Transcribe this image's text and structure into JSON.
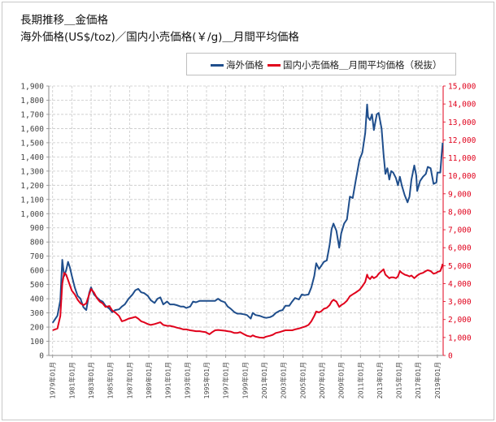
{
  "title_line1": "長期推移＿金価格",
  "title_line2": "海外価格(US$/toz)／国内小売価格(￥/g)＿月間平均価格",
  "colors": {
    "primary": "#1f4e8c",
    "secondary": "#e0001b",
    "grid": "#c8c8c8",
    "axis": "#888888"
  },
  "chart_data": {
    "type": "line",
    "title": "長期推移＿金価格",
    "subtitle": "海外価格(US$/toz)／国内小売価格(￥/g)＿月間平均価格",
    "legend_position": "top-right",
    "grid": true,
    "x_ticks": [
      "1979年01月",
      "1981年01月",
      "1983年01月",
      "1985年01月",
      "1987年01月",
      "1989年01月",
      "1991年01月",
      "1993年01月",
      "1995年01月",
      "1997年01月",
      "1999年01月",
      "2001年01月",
      "2003年01月",
      "2005年01月",
      "2007年01月",
      "2009年01月",
      "2011年01月",
      "2013年01月",
      "2015年01月",
      "2017年01月",
      "2019年01月"
    ],
    "y_left": {
      "min": 0,
      "max": 1900,
      "ticks": [
        "0",
        "100",
        "200",
        "300",
        "400",
        "500",
        "600",
        "700",
        "800",
        "900",
        "1,000",
        "1,100",
        "1,200",
        "1,300",
        "1,400",
        "1,500",
        "1,600",
        "1,700",
        "1,800",
        "1,900"
      ]
    },
    "y_right": {
      "min": 0,
      "max": 15000,
      "ticks": [
        "0",
        "1,000",
        "2,000",
        "3,000",
        "4,000",
        "5,000",
        "6,000",
        "7,000",
        "8,000",
        "9,000",
        "10,000",
        "11,000",
        "12,000",
        "13,000",
        "14,000",
        "15,000"
      ]
    },
    "series": [
      {
        "name": "海外価格",
        "axis": "left",
        "color": "#1f4e8c",
        "points": [
          [
            1979.0,
            230
          ],
          [
            1979.5,
            280
          ],
          [
            1979.8,
            390
          ],
          [
            1980.0,
            675
          ],
          [
            1980.2,
            560
          ],
          [
            1980.4,
            600
          ],
          [
            1980.6,
            660
          ],
          [
            1980.8,
            620
          ],
          [
            1981.0,
            560
          ],
          [
            1981.3,
            480
          ],
          [
            1981.6,
            420
          ],
          [
            1981.9,
            400
          ],
          [
            1982.2,
            340
          ],
          [
            1982.5,
            320
          ],
          [
            1982.8,
            440
          ],
          [
            1983.0,
            480
          ],
          [
            1983.3,
            430
          ],
          [
            1983.6,
            410
          ],
          [
            1983.9,
            390
          ],
          [
            1984.2,
            380
          ],
          [
            1984.5,
            350
          ],
          [
            1984.9,
            330
          ],
          [
            1985.2,
            305
          ],
          [
            1985.5,
            320
          ],
          [
            1985.9,
            325
          ],
          [
            1986.2,
            345
          ],
          [
            1986.5,
            360
          ],
          [
            1986.9,
            400
          ],
          [
            1987.3,
            430
          ],
          [
            1987.6,
            460
          ],
          [
            1987.9,
            470
          ],
          [
            1988.2,
            445
          ],
          [
            1988.5,
            440
          ],
          [
            1988.9,
            420
          ],
          [
            1989.2,
            390
          ],
          [
            1989.6,
            370
          ],
          [
            1989.9,
            400
          ],
          [
            1990.2,
            410
          ],
          [
            1990.5,
            360
          ],
          [
            1990.9,
            380
          ],
          [
            1991.2,
            360
          ],
          [
            1991.6,
            360
          ],
          [
            1991.9,
            355
          ],
          [
            1992.3,
            345
          ],
          [
            1992.6,
            345
          ],
          [
            1992.9,
            335
          ],
          [
            1993.3,
            345
          ],
          [
            1993.6,
            380
          ],
          [
            1993.9,
            375
          ],
          [
            1994.3,
            385
          ],
          [
            1994.6,
            385
          ],
          [
            1994.9,
            385
          ],
          [
            1995.3,
            385
          ],
          [
            1995.6,
            385
          ],
          [
            1995.9,
            385
          ],
          [
            1996.2,
            400
          ],
          [
            1996.5,
            385
          ],
          [
            1996.9,
            375
          ],
          [
            1997.2,
            345
          ],
          [
            1997.5,
            330
          ],
          [
            1997.9,
            305
          ],
          [
            1998.2,
            295
          ],
          [
            1998.5,
            295
          ],
          [
            1998.9,
            290
          ],
          [
            1999.2,
            285
          ],
          [
            1999.6,
            260
          ],
          [
            1999.8,
            300
          ],
          [
            2000.1,
            285
          ],
          [
            2000.5,
            280
          ],
          [
            2000.9,
            270
          ],
          [
            2001.2,
            265
          ],
          [
            2001.6,
            270
          ],
          [
            2001.9,
            280
          ],
          [
            2002.2,
            300
          ],
          [
            2002.6,
            315
          ],
          [
            2002.9,
            320
          ],
          [
            2003.2,
            350
          ],
          [
            2003.6,
            350
          ],
          [
            2003.9,
            380
          ],
          [
            2004.2,
            405
          ],
          [
            2004.6,
            395
          ],
          [
            2004.9,
            430
          ],
          [
            2005.2,
            425
          ],
          [
            2005.6,
            430
          ],
          [
            2005.9,
            480
          ],
          [
            2006.2,
            560
          ],
          [
            2006.4,
            650
          ],
          [
            2006.7,
            610
          ],
          [
            2006.9,
            630
          ],
          [
            2007.2,
            660
          ],
          [
            2007.5,
            670
          ],
          [
            2007.8,
            780
          ],
          [
            2008.0,
            890
          ],
          [
            2008.2,
            930
          ],
          [
            2008.5,
            880
          ],
          [
            2008.8,
            760
          ],
          [
            2009.0,
            860
          ],
          [
            2009.3,
            930
          ],
          [
            2009.6,
            960
          ],
          [
            2009.9,
            1120
          ],
          [
            2010.2,
            1110
          ],
          [
            2010.5,
            1230
          ],
          [
            2010.9,
            1380
          ],
          [
            2011.2,
            1430
          ],
          [
            2011.5,
            1570
          ],
          [
            2011.7,
            1770
          ],
          [
            2011.8,
            1680
          ],
          [
            2012.0,
            1660
          ],
          [
            2012.2,
            1700
          ],
          [
            2012.4,
            1590
          ],
          [
            2012.7,
            1700
          ],
          [
            2012.9,
            1710
          ],
          [
            2013.2,
            1600
          ],
          [
            2013.4,
            1420
          ],
          [
            2013.6,
            1280
          ],
          [
            2013.8,
            1320
          ],
          [
            2014.0,
            1240
          ],
          [
            2014.2,
            1300
          ],
          [
            2014.4,
            1290
          ],
          [
            2014.7,
            1250
          ],
          [
            2014.9,
            1200
          ],
          [
            2015.1,
            1260
          ],
          [
            2015.3,
            1200
          ],
          [
            2015.6,
            1130
          ],
          [
            2015.9,
            1080
          ],
          [
            2016.1,
            1120
          ],
          [
            2016.3,
            1240
          ],
          [
            2016.6,
            1340
          ],
          [
            2016.8,
            1270
          ],
          [
            2016.9,
            1160
          ],
          [
            2017.2,
            1230
          ],
          [
            2017.5,
            1260
          ],
          [
            2017.8,
            1280
          ],
          [
            2018.0,
            1330
          ],
          [
            2018.3,
            1320
          ],
          [
            2018.6,
            1210
          ],
          [
            2018.9,
            1220
          ],
          [
            2019.0,
            1290
          ],
          [
            2019.3,
            1290
          ],
          [
            2019.45,
            1420
          ],
          [
            2019.55,
            1500
          ]
        ]
      },
      {
        "name": "国内小売価格＿月間平均価格（税抜）",
        "axis": "right",
        "color": "#e0001b",
        "points": [
          [
            1979.0,
            1400
          ],
          [
            1979.5,
            1500
          ],
          [
            1979.8,
            2200
          ],
          [
            1980.0,
            4000
          ],
          [
            1980.2,
            4600
          ],
          [
            1980.4,
            4500
          ],
          [
            1980.6,
            4200
          ],
          [
            1980.8,
            3900
          ],
          [
            1981.0,
            3600
          ],
          [
            1981.3,
            3400
          ],
          [
            1981.6,
            3100
          ],
          [
            1981.9,
            2900
          ],
          [
            1982.2,
            2800
          ],
          [
            1982.5,
            2900
          ],
          [
            1982.8,
            3400
          ],
          [
            1983.0,
            3700
          ],
          [
            1983.3,
            3500
          ],
          [
            1983.6,
            3200
          ],
          [
            1983.9,
            3000
          ],
          [
            1984.2,
            2900
          ],
          [
            1984.5,
            2700
          ],
          [
            1984.9,
            2750
          ],
          [
            1985.2,
            2500
          ],
          [
            1985.5,
            2400
          ],
          [
            1985.9,
            2200
          ],
          [
            1986.2,
            1900
          ],
          [
            1986.5,
            1950
          ],
          [
            1986.9,
            2050
          ],
          [
            1987.3,
            2100
          ],
          [
            1987.6,
            2150
          ],
          [
            1987.9,
            2050
          ],
          [
            1988.2,
            1900
          ],
          [
            1988.5,
            1850
          ],
          [
            1988.9,
            1750
          ],
          [
            1989.2,
            1700
          ],
          [
            1989.6,
            1750
          ],
          [
            1989.9,
            1800
          ],
          [
            1990.2,
            1850
          ],
          [
            1990.5,
            1700
          ],
          [
            1990.9,
            1650
          ],
          [
            1991.2,
            1650
          ],
          [
            1991.6,
            1600
          ],
          [
            1991.9,
            1550
          ],
          [
            1992.3,
            1500
          ],
          [
            1992.6,
            1450
          ],
          [
            1992.9,
            1450
          ],
          [
            1993.3,
            1400
          ],
          [
            1993.6,
            1380
          ],
          [
            1993.9,
            1350
          ],
          [
            1994.3,
            1350
          ],
          [
            1994.6,
            1320
          ],
          [
            1994.9,
            1300
          ],
          [
            1995.3,
            1180
          ],
          [
            1995.6,
            1300
          ],
          [
            1995.9,
            1400
          ],
          [
            1996.2,
            1420
          ],
          [
            1996.5,
            1400
          ],
          [
            1996.9,
            1380
          ],
          [
            1997.2,
            1350
          ],
          [
            1997.5,
            1330
          ],
          [
            1997.9,
            1250
          ],
          [
            1998.2,
            1250
          ],
          [
            1998.5,
            1300
          ],
          [
            1998.9,
            1180
          ],
          [
            1999.2,
            1100
          ],
          [
            1999.6,
            1050
          ],
          [
            1999.8,
            1120
          ],
          [
            2000.1,
            1050
          ],
          [
            2000.5,
            1000
          ],
          [
            2000.9,
            980
          ],
          [
            2001.2,
            1050
          ],
          [
            2001.6,
            1100
          ],
          [
            2001.9,
            1150
          ],
          [
            2002.2,
            1250
          ],
          [
            2002.6,
            1300
          ],
          [
            2002.9,
            1350
          ],
          [
            2003.2,
            1400
          ],
          [
            2003.6,
            1400
          ],
          [
            2003.9,
            1400
          ],
          [
            2004.2,
            1450
          ],
          [
            2004.6,
            1500
          ],
          [
            2004.9,
            1550
          ],
          [
            2005.2,
            1600
          ],
          [
            2005.6,
            1700
          ],
          [
            2005.9,
            1900
          ],
          [
            2006.2,
            2200
          ],
          [
            2006.4,
            2450
          ],
          [
            2006.7,
            2400
          ],
          [
            2006.9,
            2450
          ],
          [
            2007.2,
            2600
          ],
          [
            2007.5,
            2650
          ],
          [
            2007.8,
            2800
          ],
          [
            2008.0,
            3000
          ],
          [
            2008.2,
            3100
          ],
          [
            2008.5,
            3000
          ],
          [
            2008.8,
            2700
          ],
          [
            2009.0,
            2800
          ],
          [
            2009.3,
            2900
          ],
          [
            2009.6,
            3050
          ],
          [
            2009.9,
            3300
          ],
          [
            2010.2,
            3400
          ],
          [
            2010.5,
            3500
          ],
          [
            2010.9,
            3650
          ],
          [
            2011.2,
            3850
          ],
          [
            2011.5,
            4100
          ],
          [
            2011.7,
            4500
          ],
          [
            2011.8,
            4350
          ],
          [
            2012.0,
            4250
          ],
          [
            2012.2,
            4400
          ],
          [
            2012.4,
            4300
          ],
          [
            2012.7,
            4400
          ],
          [
            2012.9,
            4550
          ],
          [
            2013.2,
            4700
          ],
          [
            2013.4,
            4800
          ],
          [
            2013.6,
            4500
          ],
          [
            2013.8,
            4400
          ],
          [
            2014.0,
            4300
          ],
          [
            2014.2,
            4350
          ],
          [
            2014.4,
            4350
          ],
          [
            2014.7,
            4300
          ],
          [
            2014.9,
            4400
          ],
          [
            2015.1,
            4700
          ],
          [
            2015.3,
            4600
          ],
          [
            2015.6,
            4500
          ],
          [
            2015.9,
            4450
          ],
          [
            2016.1,
            4400
          ],
          [
            2016.3,
            4450
          ],
          [
            2016.6,
            4300
          ],
          [
            2016.8,
            4400
          ],
          [
            2016.9,
            4450
          ],
          [
            2017.2,
            4550
          ],
          [
            2017.5,
            4600
          ],
          [
            2017.8,
            4700
          ],
          [
            2018.0,
            4750
          ],
          [
            2018.3,
            4700
          ],
          [
            2018.6,
            4550
          ],
          [
            2018.9,
            4600
          ],
          [
            2019.0,
            4650
          ],
          [
            2019.3,
            4700
          ],
          [
            2019.45,
            4900
          ],
          [
            2019.55,
            5100
          ]
        ]
      }
    ]
  }
}
